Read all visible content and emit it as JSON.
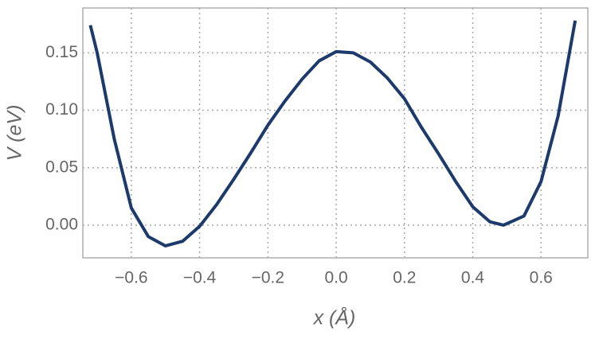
{
  "chart_data": {
    "type": "line",
    "xlabel": "x (Å)",
    "ylabel": "V (eV)",
    "x": [
      -0.72,
      -0.7,
      -0.65,
      -0.6,
      -0.55,
      -0.5,
      -0.45,
      -0.4,
      -0.35,
      -0.3,
      -0.25,
      -0.2,
      -0.15,
      -0.1,
      -0.05,
      0.0,
      0.05,
      0.1,
      0.15,
      0.2,
      0.25,
      0.3,
      0.35,
      0.4,
      0.45,
      0.49,
      0.55,
      0.6,
      0.65,
      0.7
    ],
    "series": [
      {
        "color": "#1d3a6c",
        "values": [
          0.174,
          0.15,
          0.075,
          0.015,
          -0.01,
          -0.018,
          -0.014,
          -0.001,
          0.018,
          0.04,
          0.063,
          0.087,
          0.108,
          0.127,
          0.143,
          0.151,
          0.15,
          0.142,
          0.128,
          0.11,
          0.085,
          0.062,
          0.038,
          0.016,
          0.003,
          0.0,
          0.008,
          0.038,
          0.095,
          0.178
        ]
      }
    ],
    "xlim": [
      -0.742,
      0.737
    ],
    "ylim": [
      -0.0284,
      0.189
    ],
    "xticks": [
      {
        "value": -0.6,
        "label": "−0.6"
      },
      {
        "value": -0.4,
        "label": "−0.4"
      },
      {
        "value": -0.2,
        "label": "−0.2"
      },
      {
        "value": 0,
        "label": "0.0"
      },
      {
        "value": 0.2,
        "label": "0.2"
      },
      {
        "value": 0.4,
        "label": "0.4"
      },
      {
        "value": 0.6,
        "label": "0.6"
      }
    ],
    "yticks": [
      {
        "value": 0,
        "label": "0.00"
      },
      {
        "value": 0.05,
        "label": "0.05"
      },
      {
        "value": 0.1,
        "label": "0.10"
      },
      {
        "value": 0.15,
        "label": "0.15"
      }
    ],
    "grid": true
  }
}
